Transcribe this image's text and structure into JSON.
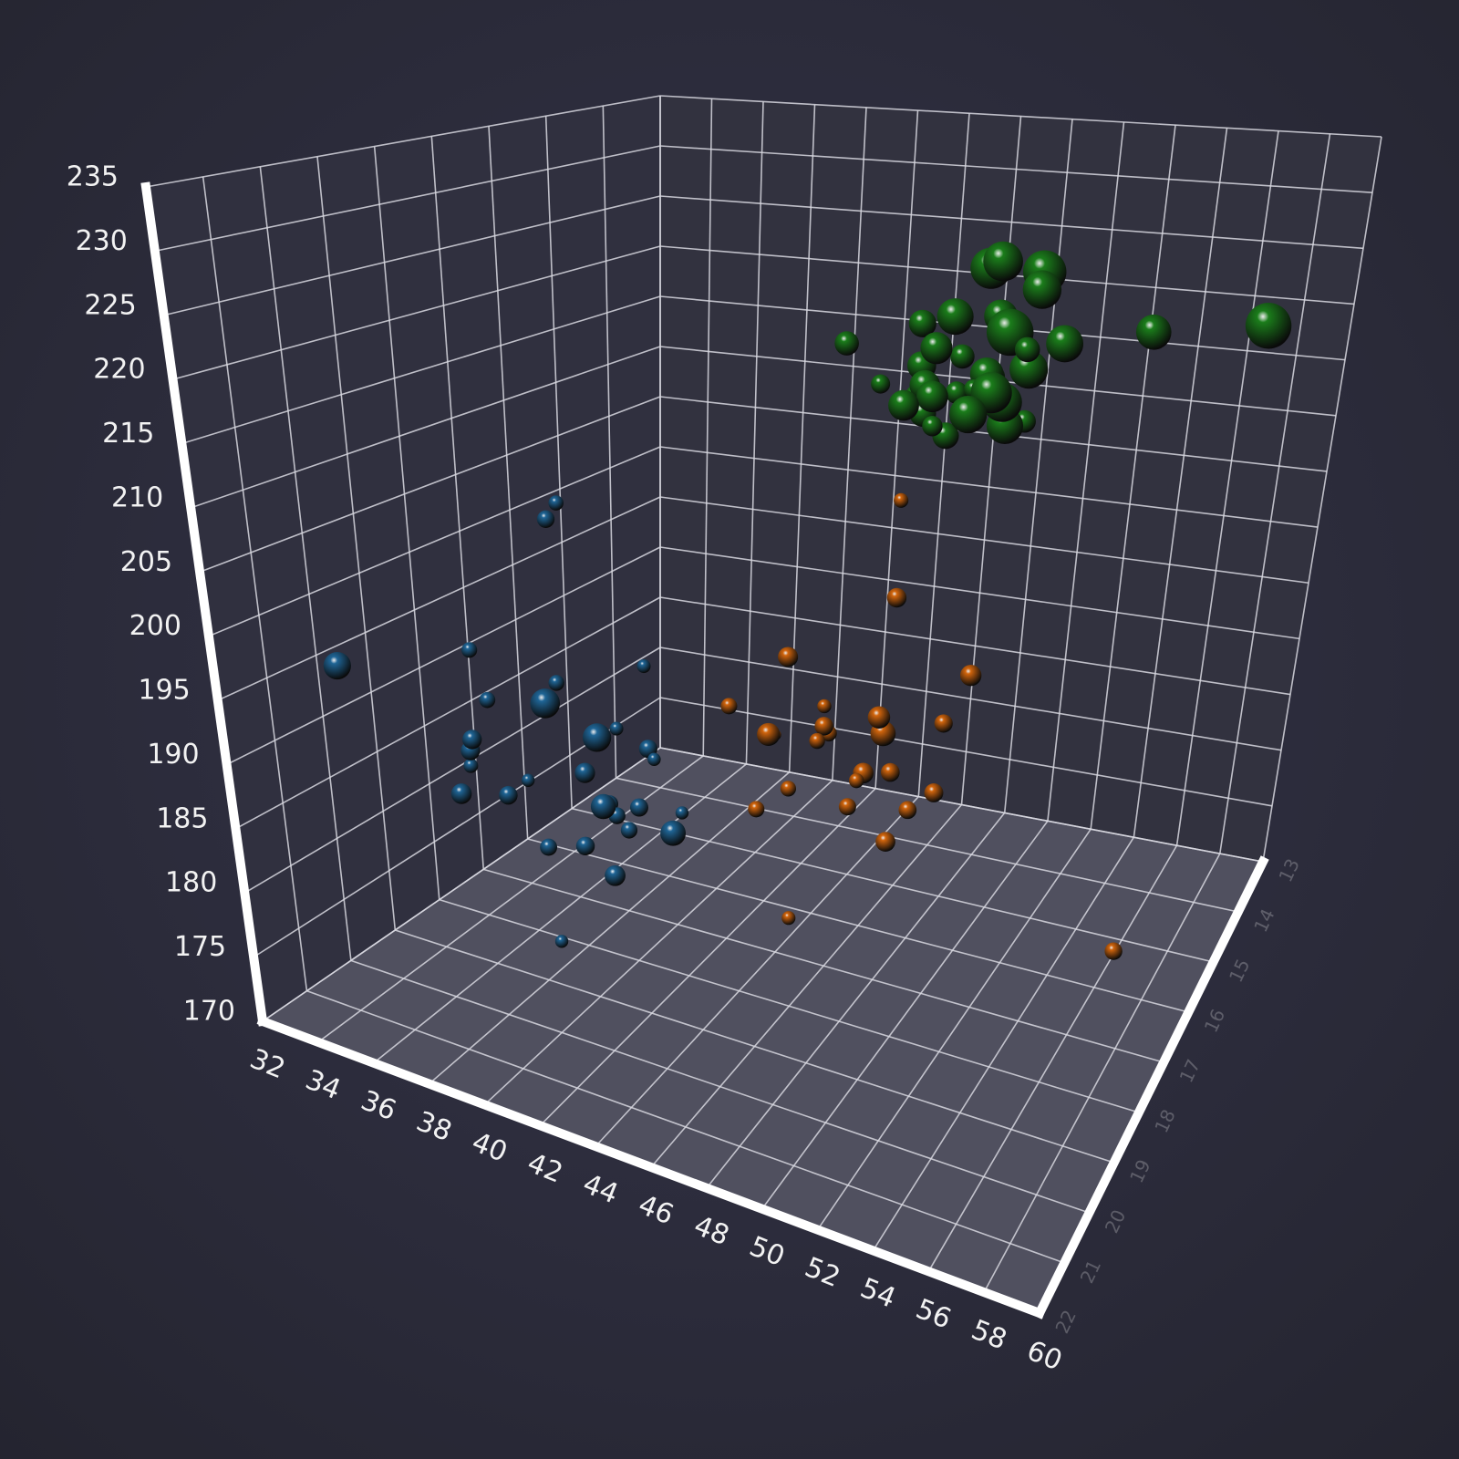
{
  "chart_data": {
    "type": "scatter3d",
    "xlim": [
      32,
      60
    ],
    "xticks": [
      32,
      34,
      36,
      38,
      40,
      42,
      44,
      46,
      48,
      50,
      52,
      54,
      56,
      58,
      60
    ],
    "ylim": [
      170,
      235
    ],
    "yticks": [
      170,
      175,
      180,
      185,
      190,
      195,
      200,
      205,
      210,
      215,
      220,
      225,
      230,
      235
    ],
    "zlim": [
      13,
      22
    ],
    "zticks": [
      13,
      14,
      15,
      16,
      17,
      18,
      19,
      20,
      21,
      22
    ],
    "grid": true,
    "series": [
      {
        "color": "#1f6596",
        "x": [
          39.1,
          39.5,
          40.3,
          36.7,
          39.3,
          38.9,
          39.2,
          34.1,
          42.0,
          37.8,
          37.8,
          41.1,
          38.6,
          34.6,
          36.6,
          38.7,
          42.5,
          34.4,
          46.0,
          37.8,
          37.7,
          35.9,
          38.2,
          38.8,
          35.3,
          40.6,
          40.5,
          37.9,
          40.5,
          33.5
        ],
        "y": [
          181,
          186,
          195,
          193,
          190,
          181,
          195,
          193,
          190,
          186,
          180,
          182,
          191,
          198,
          205,
          195,
          197,
          184,
          194,
          208,
          180,
          189,
          185,
          180,
          187,
          183,
          187,
          172,
          180,
          178
        ],
        "z": [
          18.7,
          17.4,
          18.0,
          19.3,
          20.6,
          17.8,
          19.6,
          18.1,
          20.2,
          17.1,
          17.3,
          17.6,
          21.2,
          21.1,
          17.8,
          19.0,
          20.7,
          18.4,
          21.5,
          18.3,
          18.7,
          19.2,
          18.1,
          17.2,
          18.9,
          18.6,
          17.9,
          18.6,
          18.9,
          16.7
        ],
        "size": [
          3750,
          3800,
          3250,
          3450,
          3650,
          3625,
          4675,
          3475,
          4250,
          3300,
          3700,
          3200,
          3800,
          4400,
          3700,
          3450,
          4500,
          3325,
          4200,
          3400,
          3600,
          3800,
          3950,
          3800,
          3800,
          3550,
          3200,
          3150,
          3950,
          3250
        ]
      },
      {
        "color": "#d2650c",
        "x": [
          46.5,
          50.0,
          51.3,
          45.4,
          52.7,
          45.2,
          46.1,
          51.3,
          46.0,
          51.3,
          46.6,
          51.7,
          47.0,
          52.0,
          45.9,
          50.5,
          50.3,
          58.0,
          46.4,
          49.2,
          42.4,
          48.5,
          43.2,
          50.6,
          46.7
        ],
        "y": [
          192,
          196,
          193,
          188,
          197,
          198,
          178,
          197,
          195,
          198,
          193,
          194,
          185,
          201,
          190,
          201,
          197,
          181,
          190,
          195,
          191,
          212,
          187,
          210,
          195
        ],
        "z": [
          17.9,
          19.5,
          19.2,
          18.7,
          19.8,
          17.8,
          18.2,
          18.2,
          18.9,
          19.9,
          17.8,
          20.3,
          17.3,
          18.1,
          17.1,
          19.6,
          20.0,
          17.8,
          18.6,
          18.2,
          17.3,
          17.5,
          16.6,
          19.4,
          17.9
        ],
        "size": [
          3500,
          3900,
          3650,
          3525,
          3725,
          3950,
          3250,
          3750,
          4150,
          3700,
          3800,
          3775,
          3700,
          4050,
          3575,
          4050,
          3300,
          3700,
          3450,
          4400,
          3600,
          3400,
          2900,
          3800,
          3300
        ]
      },
      {
        "color": "#1b7d1b",
        "x": [
          46.1,
          50.0,
          48.7,
          50.0,
          47.6,
          46.5,
          45.4,
          46.7,
          43.3,
          46.8,
          40.9,
          49.0,
          45.5,
          48.4,
          45.8,
          49.3,
          42.0,
          49.2,
          46.2,
          48.7,
          50.2,
          45.1,
          46.5,
          46.3,
          42.9,
          46.1,
          47.8,
          48.2,
          50.0,
          47.3,
          59.6,
          49.5,
          50.8,
          52.1,
          55.9
        ],
        "y": [
          211,
          230,
          210,
          218,
          215,
          210,
          211,
          219,
          209,
          215,
          214,
          216,
          214,
          213,
          210,
          217,
          210,
          221,
          209,
          222,
          218,
          215,
          213,
          215,
          215,
          215,
          215,
          210,
          220,
          222,
          230,
          229,
          228,
          230,
          228
        ],
        "z": [
          13.2,
          16.3,
          14.1,
          15.2,
          14.5,
          13.5,
          14.6,
          15.3,
          13.4,
          15.4,
          13.7,
          16.1,
          13.7,
          14.6,
          14.6,
          15.7,
          13.5,
          15.2,
          14.5,
          15.1,
          14.3,
          14.5,
          14.5,
          15.8,
          13.1,
          15.1,
          15.0,
          14.3,
          15.3,
          15.3,
          17.0,
          16.2,
          15.7,
          17.0,
          17.0
        ],
        "size": [
          4500,
          5700,
          4450,
          5700,
          5400,
          4550,
          4800,
          5200,
          4400,
          5150,
          4650,
          5550,
          4650,
          5850,
          4200,
          5850,
          4150,
          6300,
          4800,
          5350,
          5700,
          5000,
          4400,
          5050,
          5000,
          5100,
          4100,
          5650,
          4600,
          5550,
          6050,
          5800,
          6000,
          5550,
          5300
        ]
      }
    ]
  }
}
